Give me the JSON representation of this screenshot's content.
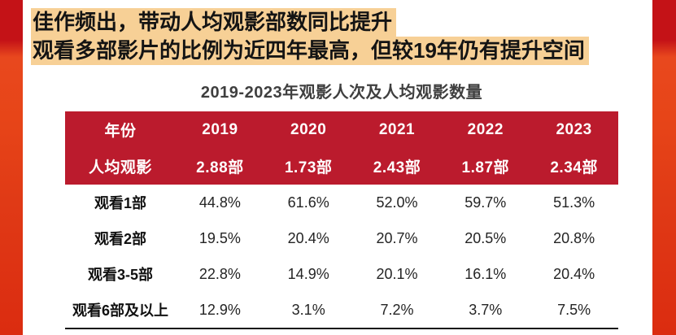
{
  "poster": {
    "headline_line1": "佳作频出，带动人均观影部数同比提升",
    "headline_line2": "观看多部影片的比例为近四年最高，但较19年仍有提升空间"
  },
  "chart_data": {
    "type": "table",
    "title": "2019-2023年观影人次及人均观影数量",
    "columns": [
      "年份",
      "2019",
      "2020",
      "2021",
      "2022",
      "2023"
    ],
    "highlight_rows": [
      {
        "label": "人均观影",
        "values": [
          "2.88部",
          "1.73部",
          "2.43部",
          "1.87部",
          "2.34部"
        ]
      }
    ],
    "rows": [
      {
        "label": "观看1部",
        "values": [
          "44.8%",
          "61.6%",
          "52.0%",
          "59.7%",
          "51.3%"
        ]
      },
      {
        "label": "观看2部",
        "values": [
          "19.5%",
          "20.4%",
          "20.7%",
          "20.5%",
          "20.8%"
        ]
      },
      {
        "label": "观看3-5部",
        "values": [
          "22.8%",
          "14.9%",
          "20.1%",
          "16.1%",
          "20.4%"
        ]
      },
      {
        "label": "观看6部及以上",
        "values": [
          "12.9%",
          "3.1%",
          "7.2%",
          "3.7%",
          "7.5%"
        ]
      }
    ],
    "layout": {
      "header_rows_highlighted": 2,
      "grid": "none",
      "bottom_rule": true
    }
  },
  "colors": {
    "table_header_red": "#BB1B2D",
    "table_header_text": "#FFFFFF",
    "headline_highlight": "#F7D096",
    "headline_text": "#141414",
    "caption_text": "#3F3F3F",
    "body_text": "#242424",
    "edge_bar_top": "#C41217",
    "edge_bar_bright": "#E8481E",
    "edge_bar_bottom": "#DB2C10",
    "bottom_rule": "#161616"
  }
}
